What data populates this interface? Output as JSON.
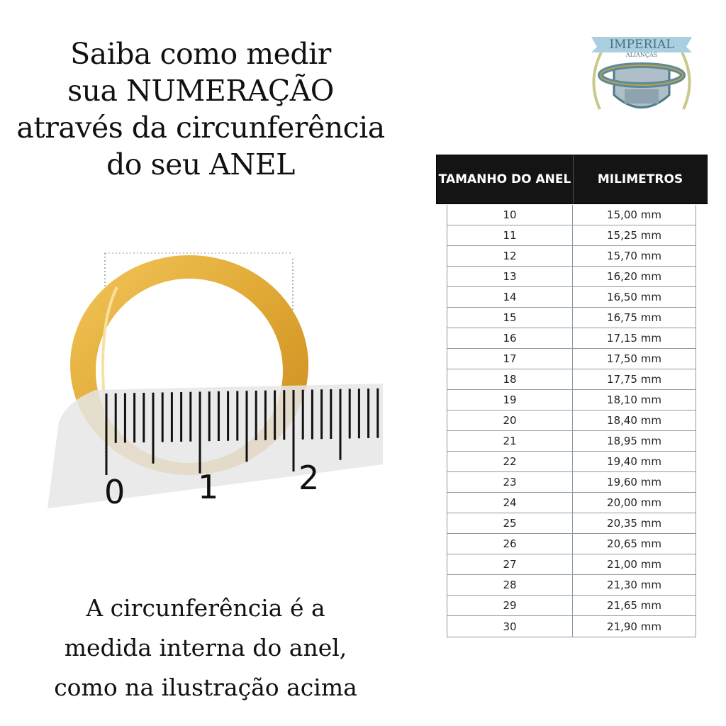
{
  "title_lines": [
    "Saiba como medir",
    "sua NUMERAÇÃO",
    "através da circunferência",
    "do seu ANEL"
  ],
  "caption_lines": [
    "A circunferência é a",
    "medida interna do anel,",
    "como na ilustração acima"
  ],
  "logo": {
    "text": "IMPERIAL",
    "subtext": "ALIANÇAS"
  },
  "ruler_labels": [
    "0",
    "1",
    "2"
  ],
  "table": {
    "headers": [
      "TAMANHO DO ANEL",
      "MILIMETROS"
    ],
    "rows": [
      {
        "size": "10",
        "mm": "15,00 mm"
      },
      {
        "size": "11",
        "mm": "15,25 mm"
      },
      {
        "size": "12",
        "mm": "15,70 mm"
      },
      {
        "size": "13",
        "mm": "16,20 mm"
      },
      {
        "size": "14",
        "mm": "16,50 mm"
      },
      {
        "size": "15",
        "mm": "16,75 mm"
      },
      {
        "size": "16",
        "mm": "17,15 mm"
      },
      {
        "size": "17",
        "mm": "17,50 mm"
      },
      {
        "size": "18",
        "mm": "17,75 mm"
      },
      {
        "size": "19",
        "mm": "18,10 mm"
      },
      {
        "size": "20",
        "mm": "18,40 mm"
      },
      {
        "size": "21",
        "mm": "18,95 mm"
      },
      {
        "size": "22",
        "mm": "19,40 mm"
      },
      {
        "size": "23",
        "mm": "19,60 mm"
      },
      {
        "size": "24",
        "mm": "20,00 mm"
      },
      {
        "size": "25",
        "mm": "20,35 mm"
      },
      {
        "size": "26",
        "mm": "20,65 mm"
      },
      {
        "size": "27",
        "mm": "21,00 mm"
      },
      {
        "size": "28",
        "mm": "21,30 mm"
      },
      {
        "size": "29",
        "mm": "21,65 mm"
      },
      {
        "size": "30",
        "mm": "21,90 mm"
      }
    ]
  },
  "colors": {
    "gold": "#e0a834",
    "header_bg": "#141414",
    "grid": "#8c99a5"
  }
}
